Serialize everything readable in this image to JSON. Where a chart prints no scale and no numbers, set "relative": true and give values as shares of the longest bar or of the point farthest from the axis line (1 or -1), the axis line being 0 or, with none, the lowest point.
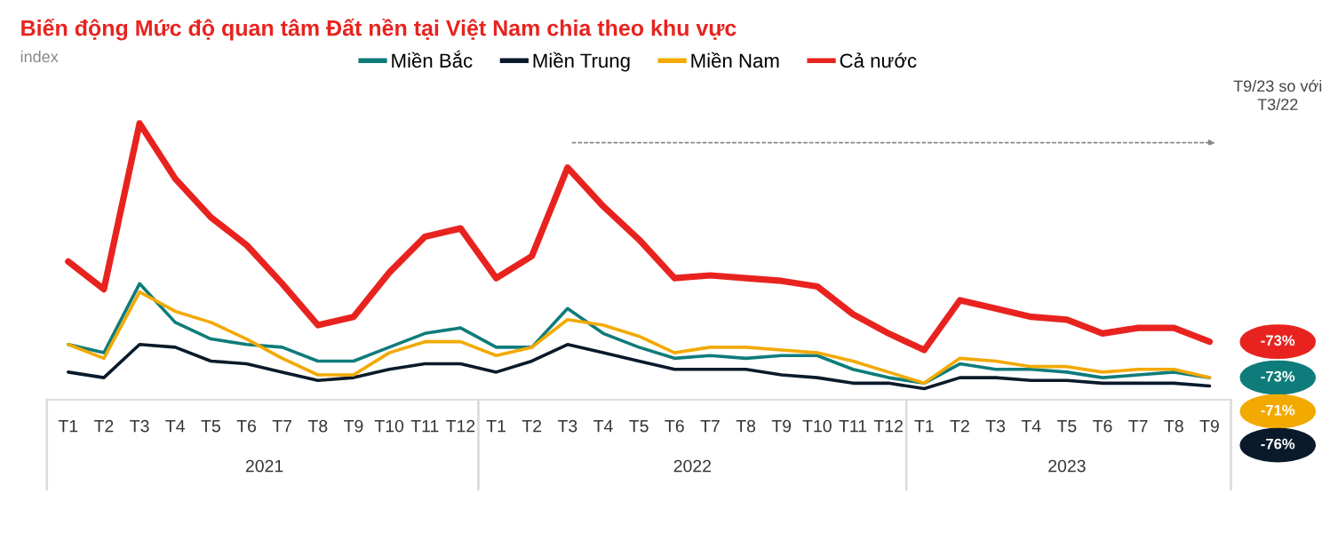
{
  "chart_data": {
    "type": "line",
    "title": "Biến động Mức độ quan tâm Đất nền tại Việt Nam chia theo khu vực",
    "subtitle": "index",
    "categories": [
      "T1",
      "T2",
      "T3",
      "T4",
      "T5",
      "T6",
      "T7",
      "T8",
      "T9",
      "T10",
      "T11",
      "T12",
      "T1",
      "T2",
      "T3",
      "T4",
      "T5",
      "T6",
      "T7",
      "T8",
      "T9",
      "T10",
      "T11",
      "T12",
      "T1",
      "T2",
      "T3",
      "T4",
      "T5",
      "T6",
      "T7",
      "T8",
      "T9"
    ],
    "relative": true,
    "series": [
      {
        "name": "Miền Bắc",
        "color": "#0e7c7b",
        "values": [
          0.2,
          0.17,
          0.42,
          0.28,
          0.22,
          0.2,
          0.19,
          0.14,
          0.14,
          0.19,
          0.24,
          0.26,
          0.19,
          0.19,
          0.33,
          0.24,
          0.19,
          0.15,
          0.16,
          0.15,
          0.16,
          0.16,
          0.11,
          0.08,
          0.06,
          0.13,
          0.11,
          0.11,
          0.1,
          0.08,
          0.09,
          0.1,
          0.08
        ]
      },
      {
        "name": "Miền Trung",
        "color": "#0a1a2a",
        "values": [
          0.1,
          0.08,
          0.2,
          0.19,
          0.14,
          0.13,
          0.1,
          0.07,
          0.08,
          0.11,
          0.13,
          0.13,
          0.1,
          0.14,
          0.2,
          0.17,
          0.14,
          0.11,
          0.11,
          0.11,
          0.09,
          0.08,
          0.06,
          0.06,
          0.04,
          0.08,
          0.08,
          0.07,
          0.07,
          0.06,
          0.06,
          0.06,
          0.05
        ]
      },
      {
        "name": "Miền Nam",
        "color": "#f2a900",
        "values": [
          0.2,
          0.15,
          0.39,
          0.32,
          0.28,
          0.22,
          0.15,
          0.09,
          0.09,
          0.17,
          0.21,
          0.21,
          0.16,
          0.19,
          0.29,
          0.27,
          0.23,
          0.17,
          0.19,
          0.19,
          0.18,
          0.17,
          0.14,
          0.1,
          0.06,
          0.15,
          0.14,
          0.12,
          0.12,
          0.1,
          0.11,
          0.11,
          0.08
        ]
      },
      {
        "name": "Cả nước",
        "color": "#e8231f",
        "values": [
          0.5,
          0.4,
          1,
          0.8,
          0.66,
          0.56,
          0.42,
          0.27,
          0.3,
          0.46,
          0.59,
          0.62,
          0.44,
          0.52,
          0.84,
          0.7,
          0.58,
          0.44,
          0.45,
          0.44,
          0.43,
          0.41,
          0.31,
          0.24,
          0.18,
          0.36,
          0.33,
          0.3,
          0.29,
          0.24,
          0.26,
          0.26,
          0.21
        ]
      }
    ],
    "annotations": [
      "2021",
      "2022",
      "2023",
      "T9/23 so với T3/22",
      "-73%",
      "-76%",
      "-71%",
      "-73%"
    ],
    "legend": "top",
    "grid": false
  }
}
